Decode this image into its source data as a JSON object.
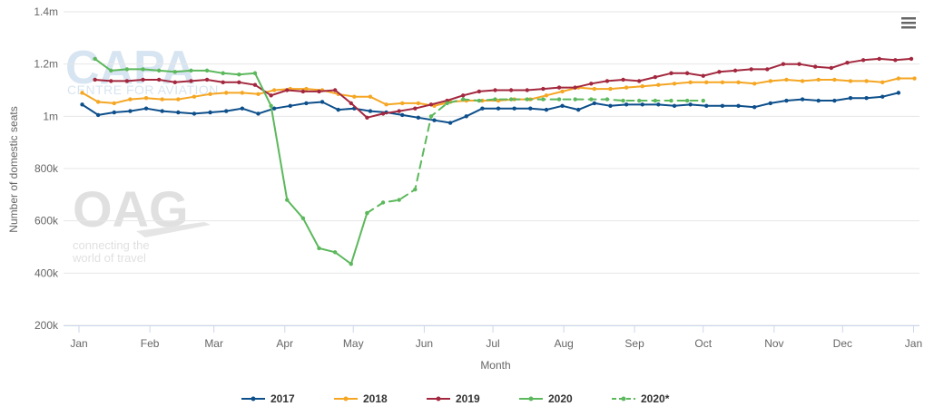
{
  "watermarks": {
    "capa_logo": "CAPA",
    "capa_subtitle": "CENTRE FOR AVIATION",
    "oag_logo": "OAG",
    "oag_tagline_1": "connecting the",
    "oag_tagline_2": "world of travel"
  },
  "menu": {
    "icon": "hamburger-menu-icon"
  },
  "chart_data": {
    "type": "line",
    "title": "",
    "xlabel": "Month",
    "ylabel": "Number of domestic seats",
    "x_domain": [
      0,
      52
    ],
    "ylim": [
      200000,
      1400000
    ],
    "yticks": [
      200000,
      400000,
      600000,
      800000,
      1000000,
      1200000,
      1400000
    ],
    "ytick_labels": [
      "200k",
      "400k",
      "600k",
      "800k",
      "1m",
      "1.2m",
      "1.4m"
    ],
    "xticks": [
      0,
      4.43,
      8.43,
      12.86,
      17.14,
      21.57,
      25.86,
      30.29,
      34.71,
      39,
      43.43,
      47.71,
      52.14
    ],
    "xtick_labels": [
      "Jan",
      "Feb",
      "Mar",
      "Apr",
      "May",
      "Jun",
      "Jul",
      "Aug",
      "Sep",
      "Oct",
      "Nov",
      "Dec",
      "Jan"
    ],
    "grid": "horizontal",
    "legend_position": "bottom-center",
    "series": [
      {
        "name": "2017",
        "color": "#0d4f8b",
        "dash": false,
        "x": [
          0.2,
          1.2,
          2.2,
          3.2,
          4.2,
          5.2,
          6.2,
          7.2,
          8.2,
          9.2,
          10.2,
          11.2,
          12.2,
          13.2,
          14.2,
          15.2,
          16.2,
          17.2,
          18.2,
          19.2,
          20.2,
          21.2,
          22.2,
          23.2,
          24.2,
          25.2,
          26.2,
          27.2,
          28.2,
          29.2,
          30.2,
          31.2,
          32.2,
          33.2,
          34.2,
          35.2,
          36.2,
          37.2,
          38.2,
          39.2,
          40.2,
          41.2,
          42.2,
          43.2,
          44.2,
          45.2,
          46.2,
          47.2,
          48.2,
          49.2,
          50.2,
          51.2
        ],
        "y": [
          1045000,
          1005000,
          1015000,
          1020000,
          1030000,
          1020000,
          1015000,
          1010000,
          1015000,
          1020000,
          1030000,
          1010000,
          1030000,
          1040000,
          1050000,
          1055000,
          1025000,
          1030000,
          1020000,
          1015000,
          1005000,
          995000,
          985000,
          975000,
          1000000,
          1030000,
          1030000,
          1030000,
          1030000,
          1025000,
          1040000,
          1025000,
          1050000,
          1040000,
          1045000,
          1045000,
          1045000,
          1040000,
          1045000,
          1040000,
          1040000,
          1040000,
          1035000,
          1050000,
          1060000,
          1065000,
          1060000,
          1060000,
          1070000,
          1070000,
          1075000,
          1090000
        ]
      },
      {
        "name": "2018",
        "color": "#f5a623",
        "dash": false,
        "x": [
          0.2,
          1.2,
          2.2,
          3.2,
          4.2,
          5.2,
          6.2,
          7.2,
          8.2,
          9.2,
          10.2,
          11.2,
          12.2,
          13.2,
          14.2,
          15.2,
          16.2,
          17.2,
          18.2,
          19.2,
          20.2,
          21.2,
          22.2,
          23.2,
          24.2,
          25.2,
          26.2,
          27.2,
          28.2,
          29.2,
          30.2,
          31.2,
          32.2,
          33.2,
          34.2,
          35.2,
          36.2,
          37.2,
          38.2,
          39.2,
          40.2,
          41.2,
          42.2,
          43.2,
          44.2,
          45.2,
          46.2,
          47.2,
          48.2,
          49.2,
          50.2,
          51.2,
          52.2
        ],
        "y": [
          1090000,
          1055000,
          1050000,
          1065000,
          1070000,
          1065000,
          1065000,
          1075000,
          1085000,
          1090000,
          1090000,
          1085000,
          1100000,
          1105000,
          1105000,
          1100000,
          1085000,
          1075000,
          1075000,
          1045000,
          1050000,
          1050000,
          1040000,
          1055000,
          1060000,
          1060000,
          1060000,
          1065000,
          1065000,
          1080000,
          1095000,
          1110000,
          1105000,
          1105000,
          1110000,
          1115000,
          1120000,
          1125000,
          1130000,
          1130000,
          1130000,
          1130000,
          1125000,
          1135000,
          1140000,
          1135000,
          1140000,
          1140000,
          1135000,
          1135000,
          1130000,
          1145000,
          1145000
        ]
      },
      {
        "name": "2019",
        "color": "#a3283f",
        "dash": false,
        "x": [
          1.0,
          2.0,
          3.0,
          4.0,
          5.0,
          6.0,
          7.0,
          8.0,
          9.0,
          10.0,
          11.0,
          12.0,
          13.0,
          14.0,
          15.0,
          16.0,
          17.0,
          18.0,
          19.0,
          20.0,
          21.0,
          22.0,
          23.0,
          24.0,
          25.0,
          26.0,
          27.0,
          28.0,
          29.0,
          30.0,
          31.0,
          32.0,
          33.0,
          34.0,
          35.0,
          36.0,
          37.0,
          38.0,
          39.0,
          40.0,
          41.0,
          42.0,
          43.0,
          44.0,
          45.0,
          46.0,
          47.0,
          48.0,
          49.0,
          50.0,
          51.0,
          52.0
        ],
        "y": [
          1140000,
          1135000,
          1135000,
          1140000,
          1140000,
          1130000,
          1135000,
          1140000,
          1130000,
          1130000,
          1120000,
          1080000,
          1100000,
          1095000,
          1095000,
          1100000,
          1050000,
          995000,
          1010000,
          1020000,
          1030000,
          1045000,
          1060000,
          1080000,
          1095000,
          1100000,
          1100000,
          1100000,
          1105000,
          1110000,
          1110000,
          1125000,
          1135000,
          1140000,
          1135000,
          1150000,
          1165000,
          1165000,
          1155000,
          1170000,
          1175000,
          1180000,
          1180000,
          1200000,
          1200000,
          1190000,
          1185000,
          1205000,
          1215000,
          1220000,
          1215000,
          1220000
        ]
      },
      {
        "name": "2020",
        "color": "#5cb85c",
        "dash": false,
        "x": [
          1.0,
          2.0,
          3.0,
          4.0,
          5.0,
          6.0,
          7.0,
          8.0,
          9.0,
          10.0,
          11.0,
          12.0,
          13.0,
          14.0,
          15.0,
          16.0,
          17.0,
          18.0
        ],
        "y": [
          1220000,
          1175000,
          1180000,
          1180000,
          1175000,
          1170000,
          1175000,
          1175000,
          1165000,
          1160000,
          1165000,
          1040000,
          680000,
          610000,
          495000,
          480000,
          435000,
          630000
        ]
      },
      {
        "name": "2020*",
        "color": "#5cb85c",
        "dash": true,
        "x": [
          18.0,
          19.0,
          20.0,
          21.0,
          22.0,
          23.0,
          24.0,
          25.0,
          26.0,
          27.0,
          28.0,
          29.0,
          30.0,
          31.0,
          32.0,
          33.0,
          34.0,
          35.0,
          36.0,
          37.0,
          38.0,
          39.0
        ],
        "y": [
          630000,
          670000,
          680000,
          720000,
          1000000,
          1050000,
          1065000,
          1060000,
          1065000,
          1065000,
          1065000,
          1065000,
          1065000,
          1065000,
          1065000,
          1065000,
          1060000,
          1060000,
          1060000,
          1060000,
          1060000,
          1060000
        ]
      }
    ]
  }
}
